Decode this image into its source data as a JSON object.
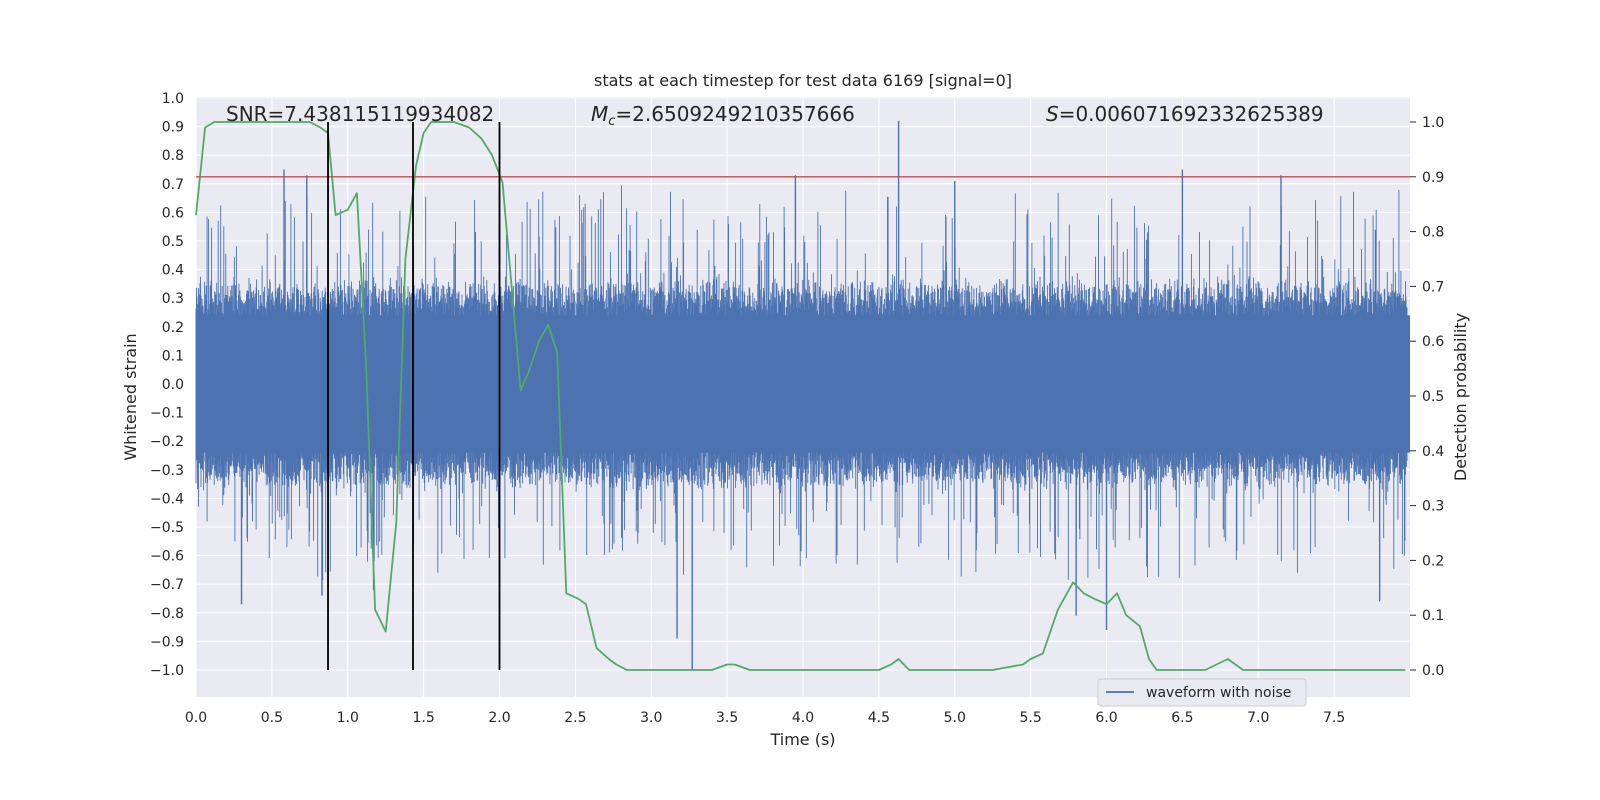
{
  "chart_data": {
    "type": "line",
    "title": "stats at each timestep for test data 6169 [signal=0]",
    "xlabel": "Time (s)",
    "ylabel": "Whitened strain",
    "ylabel_right": "Detection probability",
    "xlim": [
      0.0,
      8.0
    ],
    "ylim": [
      -1.0,
      1.0
    ],
    "ylim_right": [
      0.0,
      1.0
    ],
    "x_ticks": [
      "0.0",
      "0.5",
      "1.0",
      "1.5",
      "2.0",
      "2.5",
      "3.0",
      "3.5",
      "4.0",
      "4.5",
      "5.0",
      "5.5",
      "6.0",
      "6.5",
      "7.0",
      "7.5"
    ],
    "y_ticks": [
      "1.0",
      "0.9",
      "0.8",
      "0.7",
      "0.6",
      "0.5",
      "0.4",
      "0.3",
      "0.2",
      "0.1",
      "0.0",
      "−0.1",
      "−0.2",
      "−0.3",
      "−0.4",
      "−0.5",
      "−0.6",
      "−0.7",
      "−0.8",
      "−0.9",
      "−1.0"
    ],
    "y_ticks_right": [
      "1.0",
      "0.9",
      "0.8",
      "0.7",
      "0.6",
      "0.5",
      "0.4",
      "0.3",
      "0.2",
      "0.1",
      "0.0"
    ],
    "annotations": {
      "snr": "SNR=7.438115119934082",
      "mc_symbol": "M",
      "mc_sub": "c",
      "mc_value": "=2.6509249210357666",
      "s_symbol": "S",
      "s_value": "=0.006071692332625389"
    },
    "threshold": 0.9,
    "vertical_lines": [
      0.87,
      1.43,
      2.0
    ],
    "series": [
      {
        "name": "waveform with noise",
        "color": "#4c72b0",
        "axis": "left",
        "description": "whitened strain noise envelope",
        "typical_amplitude": 0.32,
        "peaks": [
          {
            "x": 0.58,
            "y": 0.75
          },
          {
            "x": 0.73,
            "y": 0.73
          },
          {
            "x": 2.0,
            "y": 0.8
          },
          {
            "x": 3.95,
            "y": 0.73
          },
          {
            "x": 4.63,
            "y": 0.92
          },
          {
            "x": 5.0,
            "y": 0.71
          },
          {
            "x": 6.5,
            "y": 0.75
          },
          {
            "x": 7.15,
            "y": 0.73
          },
          {
            "x": 0.3,
            "y": -0.77
          },
          {
            "x": 0.83,
            "y": -0.74
          },
          {
            "x": 1.17,
            "y": -0.72
          },
          {
            "x": 3.27,
            "y": -1.0
          },
          {
            "x": 3.17,
            "y": -0.89
          },
          {
            "x": 5.8,
            "y": -0.81
          },
          {
            "x": 6.0,
            "y": -0.86
          },
          {
            "x": 7.8,
            "y": -0.76
          }
        ]
      },
      {
        "name": "detection probability",
        "color": "#55a868",
        "axis": "right",
        "x": [
          0.0,
          0.06,
          0.12,
          0.3,
          0.5,
          0.6,
          0.75,
          0.82,
          0.87,
          0.92,
          1.0,
          1.06,
          1.12,
          1.18,
          1.25,
          1.32,
          1.38,
          1.45,
          1.5,
          1.55,
          1.62,
          1.7,
          1.8,
          1.88,
          1.95,
          2.02,
          2.08,
          2.14,
          2.2,
          2.26,
          2.32,
          2.38,
          2.44,
          2.52,
          2.57,
          2.64,
          2.72,
          2.77,
          2.84,
          2.92,
          3.0,
          3.1,
          3.2,
          3.3,
          3.4,
          3.5,
          3.55,
          3.65,
          3.8,
          3.95,
          4.1,
          4.25,
          4.4,
          4.5,
          4.58,
          4.63,
          4.7,
          4.85,
          5.0,
          5.25,
          5.45,
          5.5,
          5.58,
          5.68,
          5.78,
          5.85,
          5.92,
          6.0,
          6.07,
          6.13,
          6.22,
          6.28,
          6.33,
          6.45,
          6.65,
          6.8,
          6.9,
          7.1,
          7.4,
          7.8,
          7.97
        ],
        "values": [
          0.83,
          0.99,
          1.0,
          1.0,
          1.0,
          1.0,
          1.0,
          0.99,
          0.98,
          0.83,
          0.84,
          0.87,
          0.56,
          0.11,
          0.07,
          0.27,
          0.75,
          0.92,
          0.98,
          1.0,
          1.0,
          1.0,
          0.99,
          0.97,
          0.94,
          0.89,
          0.7,
          0.51,
          0.55,
          0.6,
          0.63,
          0.58,
          0.14,
          0.13,
          0.12,
          0.04,
          0.02,
          0.01,
          0.0,
          0.0,
          0.0,
          0.0,
          0.0,
          0.0,
          0.0,
          0.01,
          0.01,
          0.0,
          0.0,
          0.0,
          0.0,
          0.0,
          0.0,
          0.0,
          0.01,
          0.02,
          0.0,
          0.0,
          0.0,
          0.0,
          0.01,
          0.02,
          0.03,
          0.11,
          0.16,
          0.14,
          0.13,
          0.12,
          0.14,
          0.1,
          0.08,
          0.02,
          0.0,
          0.0,
          0.0,
          0.02,
          0.0,
          0.0,
          0.0,
          0.0,
          0.0
        ]
      }
    ],
    "legend": {
      "label": "waveform with noise",
      "placement": "lower-center"
    },
    "colors": {
      "background": "#eaeaf2",
      "grid": "#ffffff",
      "waveform": "#4c72b0",
      "probability": "#55a868",
      "threshold": "#c44e52",
      "vlines": "#000000"
    }
  }
}
